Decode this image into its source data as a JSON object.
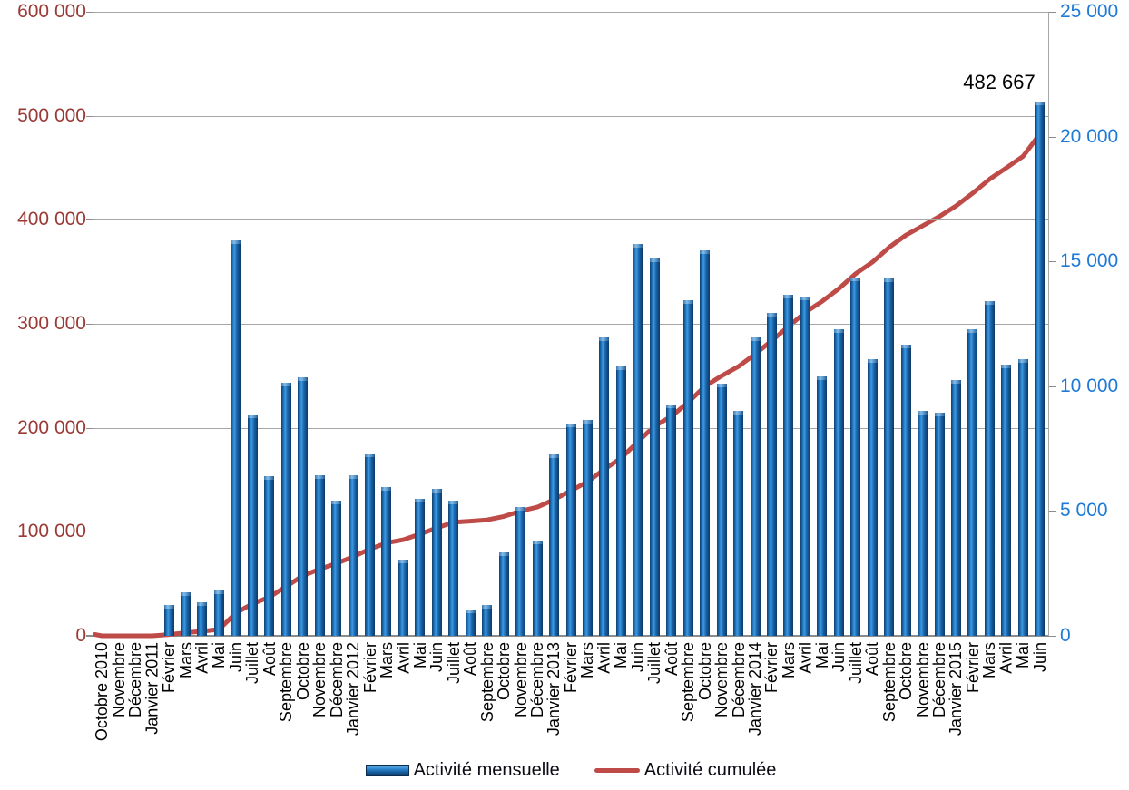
{
  "chart_data": {
    "type": "bar",
    "combo": "bar+line",
    "title": "",
    "xlabel": "",
    "ylabel_left": "",
    "ylabel_right": "",
    "categories": [
      "Octobre 2010",
      "Novembre",
      "Décembre",
      "Janvier 2011",
      "Février",
      "Mars",
      "Avril",
      "Mai",
      "Juin",
      "Juillet",
      "Août",
      "Septembre",
      "Octobre",
      "Novembre",
      "Décembre",
      "Janvier 2012",
      "Février",
      "Mars",
      "Avril",
      "Mai",
      "Juin",
      "Juillet",
      "Août",
      "Septembre",
      "Octobre",
      "Novembre",
      "Décembre",
      "Janvier 2013",
      "Février",
      "Mars",
      "Avril",
      "Mai",
      "Juin",
      "Juillet",
      "Août",
      "Septembre",
      "Octobre",
      "Novembre",
      "Décembre",
      "Janvier 2014",
      "Février",
      "Mars",
      "Avril",
      "Mai",
      "Juin",
      "Juillet",
      "Août",
      "Septembre",
      "Octobre",
      "Novembre",
      "Décembre",
      "Janvier 2015",
      "Février",
      "Mars",
      "Avril",
      "Mai",
      "Juin"
    ],
    "series": [
      {
        "name": "Activité mensuelle",
        "type": "bar",
        "axis": "right",
        "color": "#1f6cb4",
        "values": [
          0,
          0,
          0,
          0,
          1250,
          1750,
          1350,
          1800,
          15850,
          8850,
          6400,
          10150,
          10350,
          6450,
          5400,
          6450,
          7300,
          5950,
          3050,
          5500,
          5900,
          5400,
          1050,
          1250,
          3350,
          5150,
          3800,
          7250,
          8500,
          8650,
          11950,
          10800,
          15700,
          15100,
          9250,
          13450,
          15450,
          10100,
          9000,
          11950,
          12950,
          13650,
          13600,
          10400,
          12300,
          14350,
          11100,
          14300,
          11650,
          9000,
          8950,
          10250,
          12300,
          13400,
          10850,
          11100,
          21400
        ]
      },
      {
        "name": "Activité cumulée",
        "type": "line",
        "axis": "left",
        "color": "#be4b48",
        "derivation": "cumulative sum of Activité mensuelle",
        "final_value": 482667
      }
    ],
    "left_axis": {
      "min": 0,
      "max": 600000,
      "tick_labels_top_down": [
        "600 000",
        "500 000",
        "400 000",
        "300 000",
        "200 000",
        "100 000",
        "0"
      ],
      "text_color": "#9a3a36"
    },
    "right_axis": {
      "min": 0,
      "max": 25000,
      "tick_labels_top_down": [
        "25 000",
        "20 000",
        "15 000",
        "10 000",
        "5 000",
        "0"
      ],
      "text_color": "#1e7ad6"
    },
    "annotation": {
      "text": "482 667"
    },
    "grid": "horizontal, major left-axis ticks",
    "legend_position": "bottom-center"
  },
  "legend": {
    "items": [
      {
        "label": "Activité mensuelle",
        "swatch": "bar-blue"
      },
      {
        "label": "Activité cumulée",
        "swatch": "line-red"
      }
    ]
  }
}
